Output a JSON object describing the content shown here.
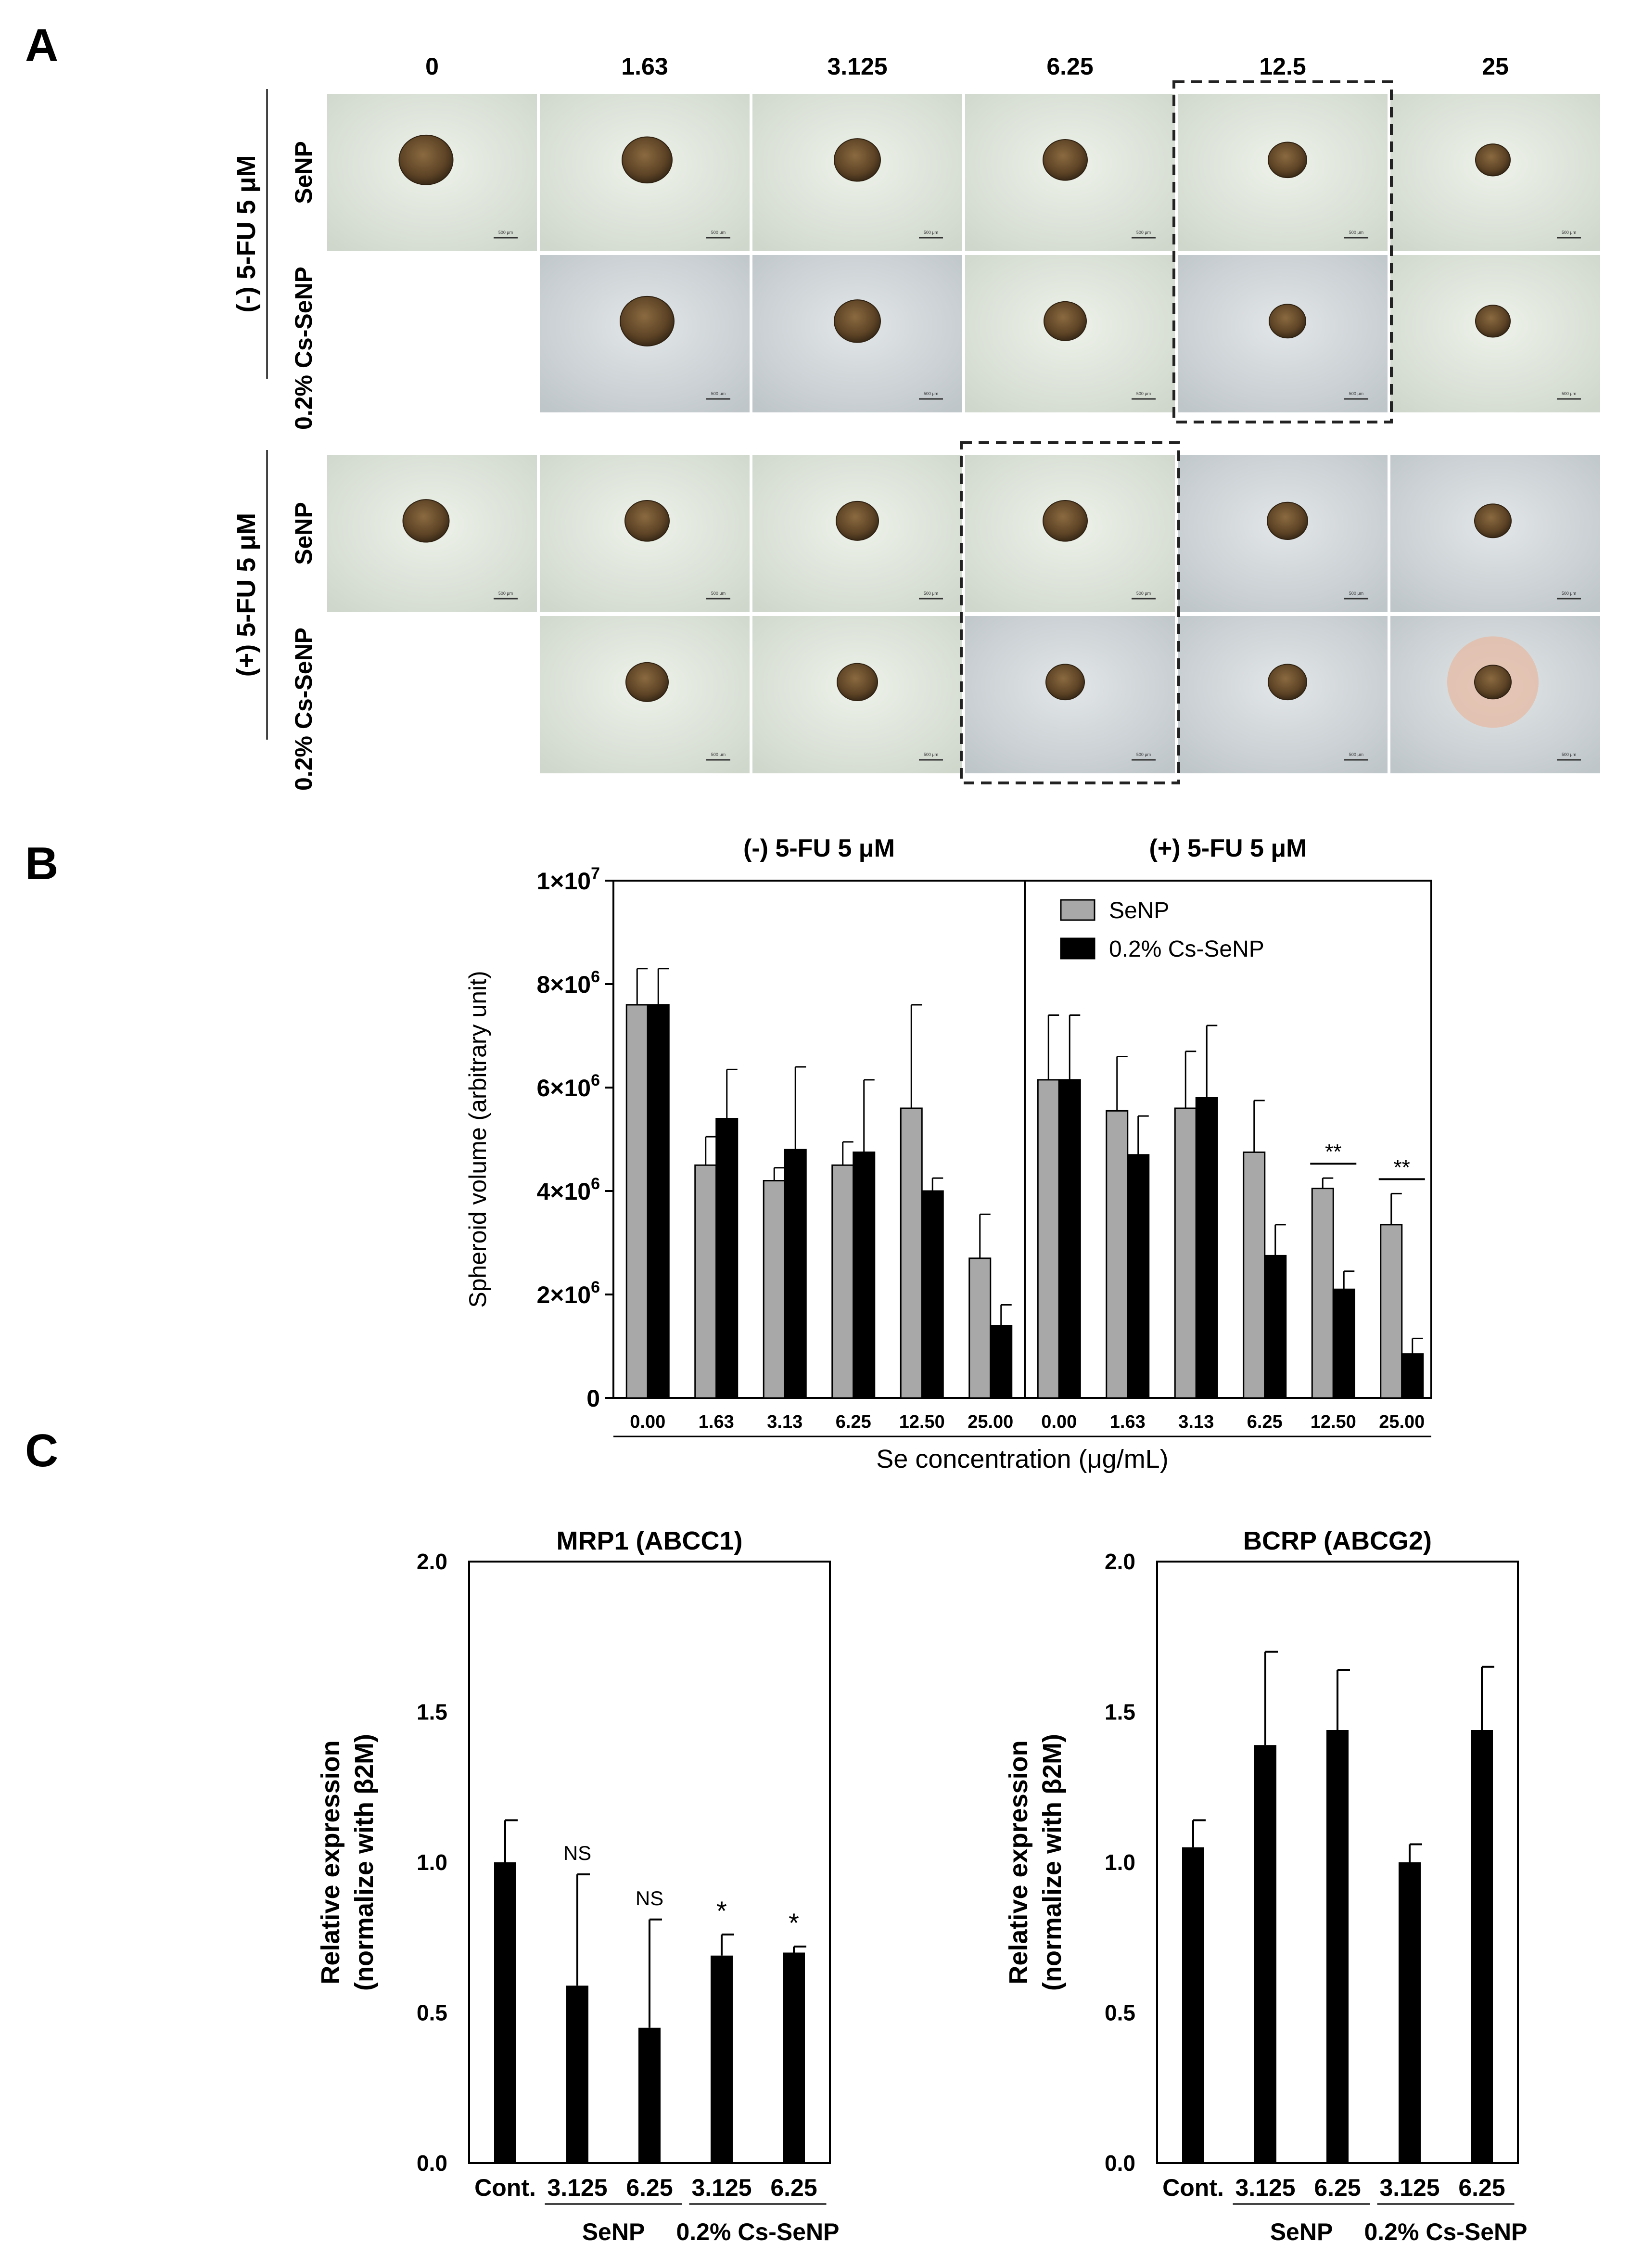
{
  "panels": {
    "a": "A",
    "b": "B",
    "c": "C"
  },
  "panel_a": {
    "concentrations": [
      "0",
      "1.63",
      "3.125",
      "6.25",
      "12.5",
      "25"
    ],
    "groups": [
      {
        "label": "(-) 5-FU 5 μM",
        "rows": [
          "SeNP",
          "0.2% Cs-SeNP"
        ]
      },
      {
        "label": "(+) 5-FU 5 μM",
        "rows": [
          "SeNP",
          "0.2% Cs-SeNP"
        ]
      }
    ],
    "scale_bar": "500 μm",
    "highlight_minus": "12.5",
    "highlight_plus": "6.25",
    "colors": {
      "plate_light": "#dfe6dc",
      "plate_gray": "#cdd3d6",
      "spheroid": "#6a5030",
      "spheroid_dark": "#3a2a18"
    }
  },
  "chart_data": [
    {
      "id": "B",
      "type": "bar",
      "group_titles": [
        "(-) 5-FU 5 μM",
        "(+) 5-FU 5 μM"
      ],
      "categories": [
        "0.00",
        "1.63",
        "3.13",
        "6.25",
        "12.50",
        "25.00"
      ],
      "xlabel": "Se concentration (μg/mL)",
      "ylabel": "Spheroid volume (arbitrary unit)",
      "ylim": [
        0,
        10000000
      ],
      "yticks": [
        {
          "value": 0,
          "base": "0",
          "exp": ""
        },
        {
          "value": 2000000,
          "base": "2×10",
          "exp": "6"
        },
        {
          "value": 4000000,
          "base": "4×10",
          "exp": "6"
        },
        {
          "value": 6000000,
          "base": "6×10",
          "exp": "6"
        },
        {
          "value": 8000000,
          "base": "8×10",
          "exp": "6"
        },
        {
          "value": 10000000,
          "base": "1×10",
          "exp": "7"
        }
      ],
      "legend": [
        "SeNP",
        "0.2% Cs-SeNP"
      ],
      "legend_position": "top-right",
      "series_colors": [
        "#a8a8a8",
        "#000000"
      ],
      "series": [
        {
          "name": "SeNP",
          "group": "(-) 5-FU 5 μM",
          "values": [
            7600000,
            4500000,
            4200000,
            4500000,
            5600000,
            2700000
          ],
          "errors": [
            700000,
            550000,
            250000,
            450000,
            2000000,
            850000
          ]
        },
        {
          "name": "0.2% Cs-SeNP",
          "group": "(-) 5-FU 5 μM",
          "values": [
            7600000,
            5400000,
            4800000,
            4750000,
            4000000,
            1400000
          ],
          "errors": [
            700000,
            950000,
            1600000,
            1400000,
            250000,
            400000
          ]
        },
        {
          "name": "SeNP",
          "group": "(+) 5-FU 5 μM",
          "values": [
            6150000,
            5550000,
            5600000,
            4750000,
            4050000,
            3350000
          ],
          "errors": [
            1250000,
            1050000,
            1100000,
            1000000,
            200000,
            600000
          ]
        },
        {
          "name": "0.2% Cs-SeNP",
          "group": "(+) 5-FU 5 μM",
          "values": [
            6150000,
            4700000,
            5800000,
            2750000,
            2100000,
            850000
          ],
          "errors": [
            1250000,
            750000,
            1400000,
            600000,
            350000,
            300000
          ]
        }
      ],
      "annotations": [
        {
          "text": "**",
          "group": "(+) 5-FU 5 μM",
          "category": "12.50"
        },
        {
          "text": "**",
          "group": "(+) 5-FU 5 μM",
          "category": "25.00"
        }
      ]
    },
    {
      "id": "C-left",
      "type": "bar",
      "title": "MRP1 (ABCC1)",
      "ylabel_lines": [
        "Relative expression",
        "(normalize with  β2M)"
      ],
      "categories": [
        "Cont.",
        "3.125",
        "6.25",
        "3.125",
        "6.25"
      ],
      "group_labels": [
        {
          "text": "SeNP",
          "from": 1,
          "to": 2
        },
        {
          "text": "0.2% Cs-SeNP",
          "from": 3,
          "to": 4
        }
      ],
      "ylim": [
        0,
        2
      ],
      "yticks": [
        "0.0",
        "0.5",
        "1.0",
        "1.5",
        "2.0"
      ],
      "values": [
        1.0,
        0.59,
        0.45,
        0.69,
        0.7
      ],
      "errors": [
        0.14,
        0.37,
        0.36,
        0.07,
        0.02
      ],
      "annotations": [
        "",
        "NS",
        "NS",
        "*",
        "*"
      ]
    },
    {
      "id": "C-right",
      "type": "bar",
      "title": "BCRP (ABCG2)",
      "ylabel_lines": [
        "Relative expression",
        "(normalize with  β2M)"
      ],
      "categories": [
        "Cont.",
        "3.125",
        "6.25",
        "3.125",
        "6.25"
      ],
      "group_labels": [
        {
          "text": "SeNP",
          "from": 1,
          "to": 2
        },
        {
          "text": "0.2% Cs-SeNP",
          "from": 3,
          "to": 4
        }
      ],
      "ylim": [
        0,
        2
      ],
      "yticks": [
        "0.0",
        "0.5",
        "1.0",
        "1.5",
        "2.0"
      ],
      "values": [
        1.05,
        1.39,
        1.44,
        1.0,
        1.44
      ],
      "errors": [
        0.09,
        0.31,
        0.2,
        0.06,
        0.21
      ],
      "annotations": [
        "",
        "",
        "",
        "",
        ""
      ]
    }
  ]
}
